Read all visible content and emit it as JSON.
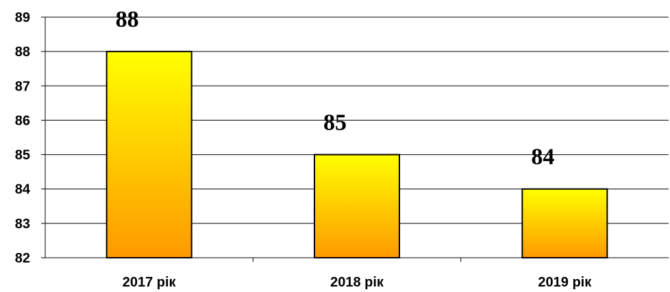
{
  "chart_data": {
    "type": "bar",
    "title": "",
    "xlabel": "",
    "ylabel": "",
    "categories": [
      "2017 рік",
      "2018 рік",
      "2019 рік"
    ],
    "values": [
      88,
      85,
      84
    ],
    "data_labels": [
      "88",
      "85",
      "84"
    ],
    "ylim": [
      82,
      89
    ],
    "yticks": [
      82,
      83,
      84,
      85,
      86,
      87,
      88,
      89
    ],
    "grid": "horizontal",
    "legend": "none",
    "colors": {
      "bar_top": "#ffff00",
      "bar_bottom": "#ff9900",
      "bar_outline": "#000000",
      "grid": "#000000"
    }
  }
}
